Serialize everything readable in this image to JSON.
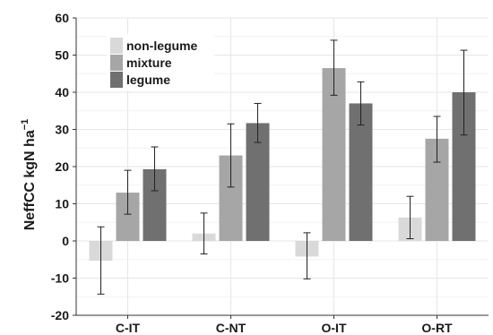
{
  "chart_data": {
    "type": "bar",
    "title": "",
    "xlabel": "",
    "ylabel": "NeffCC  kgN ha",
    "ylabel_superscript": "−1",
    "ylim": [
      -20,
      60
    ],
    "yticks": [
      -20,
      -10,
      0,
      10,
      20,
      30,
      40,
      50,
      60
    ],
    "grid": "light gray horizontal and vertical gridlines",
    "legend_position": "top-left",
    "categories": [
      "C-IT",
      "C-NT",
      "O-IT",
      "O-RT"
    ],
    "series": [
      {
        "name": "non-legume",
        "color": "#d9d9d9",
        "values": [
          -5.3,
          2.0,
          -4.2,
          6.3
        ],
        "err_low": [
          -14.3,
          -3.5,
          -10.2,
          0.6
        ],
        "err_high": [
          3.8,
          7.5,
          2.2,
          12.0
        ]
      },
      {
        "name": "mixture",
        "color": "#a6a6a6",
        "values": [
          13.0,
          23.0,
          46.5,
          27.5
        ],
        "err_low": [
          7.2,
          14.5,
          39.2,
          21.2
        ],
        "err_high": [
          19.0,
          31.5,
          54.0,
          33.5
        ]
      },
      {
        "name": "legume",
        "color": "#707070",
        "values": [
          19.3,
          31.7,
          37.0,
          40.0
        ],
        "err_low": [
          13.5,
          26.5,
          31.2,
          28.5
        ],
        "err_high": [
          25.3,
          37.0,
          42.8,
          51.3
        ]
      }
    ]
  }
}
